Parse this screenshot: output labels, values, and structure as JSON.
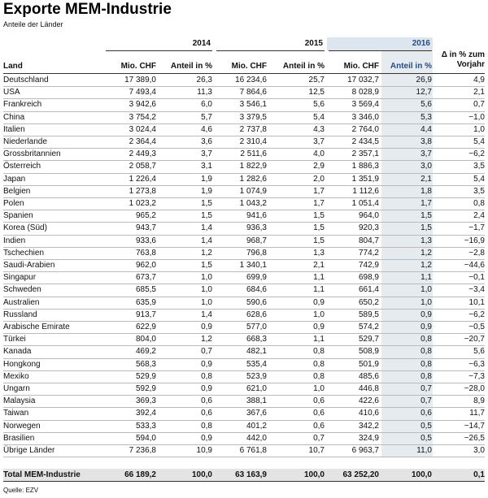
{
  "header": {
    "title": "Exporte MEM-Industrie",
    "subtitle": "Anteile der Länder"
  },
  "table": {
    "years": [
      "2014",
      "2015",
      "2016"
    ],
    "columns": [
      "Land",
      "Mio. CHF",
      "Anteil in %",
      "Mio. CHF",
      "Anteil in %",
      "Mio. CHF",
      "Anteil in %",
      "Δ in % zum Vorjahr"
    ],
    "rows": [
      [
        "Deutschland",
        "17 389,0",
        "26,3",
        "16 234,6",
        "25,7",
        "17 032,7",
        "26,9",
        "4,9"
      ],
      [
        "USA",
        "7 493,4",
        "11,3",
        "7 864,6",
        "12,5",
        "8 028,9",
        "12,7",
        "2,1"
      ],
      [
        "Frankreich",
        "3 942,6",
        "6,0",
        "3 546,1",
        "5,6",
        "3 569,4",
        "5,6",
        "0,7"
      ],
      [
        "China",
        "3 754,2",
        "5,7",
        "3 379,5",
        "5,4",
        "3 346,0",
        "5,3",
        "−1,0"
      ],
      [
        "Italien",
        "3 024,4",
        "4,6",
        "2 737,8",
        "4,3",
        "2 764,0",
        "4,4",
        "1,0"
      ],
      [
        "Niederlande",
        "2 364,4",
        "3,6",
        "2 310,4",
        "3,7",
        "2 434,5",
        "3,8",
        "5,4"
      ],
      [
        "Grossbritannien",
        "2 449,3",
        "3,7",
        "2 511,6",
        "4,0",
        "2 357,1",
        "3,7",
        "−6,2"
      ],
      [
        "Österreich",
        "2 058,7",
        "3,1",
        "1 822,9",
        "2,9",
        "1 886,3",
        "3,0",
        "3,5"
      ],
      [
        "Japan",
        "1 226,4",
        "1,9",
        "1 282,6",
        "2,0",
        "1 351,9",
        "2,1",
        "5,4"
      ],
      [
        "Belgien",
        "1 273,8",
        "1,9",
        "1 074,9",
        "1,7",
        "1 112,6",
        "1,8",
        "3,5"
      ],
      [
        "Polen",
        "1 023,2",
        "1,5",
        "1 043,2",
        "1,7",
        "1 051,4",
        "1,7",
        "0,8"
      ],
      [
        "Spanien",
        "965,2",
        "1,5",
        "941,6",
        "1,5",
        "964,0",
        "1,5",
        "2,4"
      ],
      [
        "Korea (Süd)",
        "943,7",
        "1,4",
        "936,3",
        "1,5",
        "920,3",
        "1,5",
        "−1,7"
      ],
      [
        "Indien",
        "933,6",
        "1,4",
        "968,7",
        "1,5",
        "804,7",
        "1,3",
        "−16,9"
      ],
      [
        "Tschechien",
        "763,8",
        "1,2",
        "796,8",
        "1,3",
        "774,2",
        "1,2",
        "−2,8"
      ],
      [
        "Saudi-Arabien",
        "962,0",
        "1,5",
        "1 340,1",
        "2,1",
        "742,9",
        "1,2",
        "−44,6"
      ],
      [
        "Singapur",
        "673,7",
        "1,0",
        "699,9",
        "1,1",
        "698,9",
        "1,1",
        "−0,1"
      ],
      [
        "Schweden",
        "685,5",
        "1,0",
        "684,6",
        "1,1",
        "661,4",
        "1,0",
        "−3,4"
      ],
      [
        "Australien",
        "635,9",
        "1,0",
        "590,6",
        "0,9",
        "650,2",
        "1,0",
        "10,1"
      ],
      [
        "Russland",
        "913,7",
        "1,4",
        "628,6",
        "1,0",
        "589,5",
        "0,9",
        "−6,2"
      ],
      [
        "Arabische Emirate",
        "622,9",
        "0,9",
        "577,0",
        "0,9",
        "574,2",
        "0,9",
        "−0,5"
      ],
      [
        "Türkei",
        "804,0",
        "1,2",
        "668,3",
        "1,1",
        "529,7",
        "0,8",
        "−20,7"
      ],
      [
        "Kanada",
        "469,2",
        "0,7",
        "482,1",
        "0,8",
        "508,9",
        "0,8",
        "5,6"
      ],
      [
        "Hongkong",
        "568,3",
        "0,9",
        "535,4",
        "0,8",
        "501,9",
        "0,8",
        "−6,3"
      ],
      [
        "Mexiko",
        "529,9",
        "0,8",
        "523,9",
        "0,8",
        "485,6",
        "0,8",
        "−7,3"
      ],
      [
        "Ungarn",
        "592,9",
        "0,9",
        "621,0",
        "1,0",
        "446,8",
        "0,7",
        "−28,0"
      ],
      [
        "Malaysia",
        "369,3",
        "0,6",
        "388,1",
        "0,6",
        "422,6",
        "0,7",
        "8,9"
      ],
      [
        "Taiwan",
        "392,4",
        "0,6",
        "367,6",
        "0,6",
        "410,6",
        "0,6",
        "11,7"
      ],
      [
        "Norwegen",
        "533,3",
        "0,8",
        "401,2",
        "0,6",
        "342,2",
        "0,5",
        "−14,7"
      ],
      [
        "Brasilien",
        "594,0",
        "0,9",
        "442,0",
        "0,7",
        "324,9",
        "0,5",
        "−26,5"
      ],
      [
        "Übrige Länder",
        "7 236,8",
        "10,9",
        "6 761,8",
        "10,7",
        "6 963,7",
        "11,0",
        "3,0"
      ]
    ],
    "total": [
      "Total MEM-Industrie",
      "66 189,2",
      "100,0",
      "63 163,9",
      "100,0",
      "63 252,20",
      "100,0",
      "0,1"
    ]
  },
  "source": "Quelle: EZV"
}
